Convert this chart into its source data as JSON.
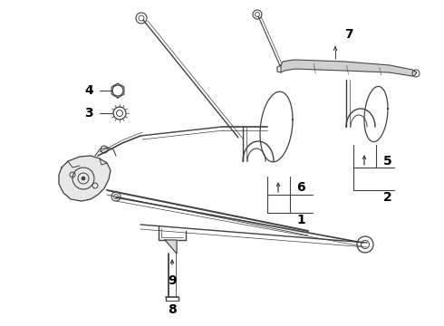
{
  "bg_color": "#ffffff",
  "line_color": "#404040",
  "label_color": "#000000",
  "lw": 0.9,
  "figsize": [
    4.9,
    3.6
  ],
  "dpi": 100
}
